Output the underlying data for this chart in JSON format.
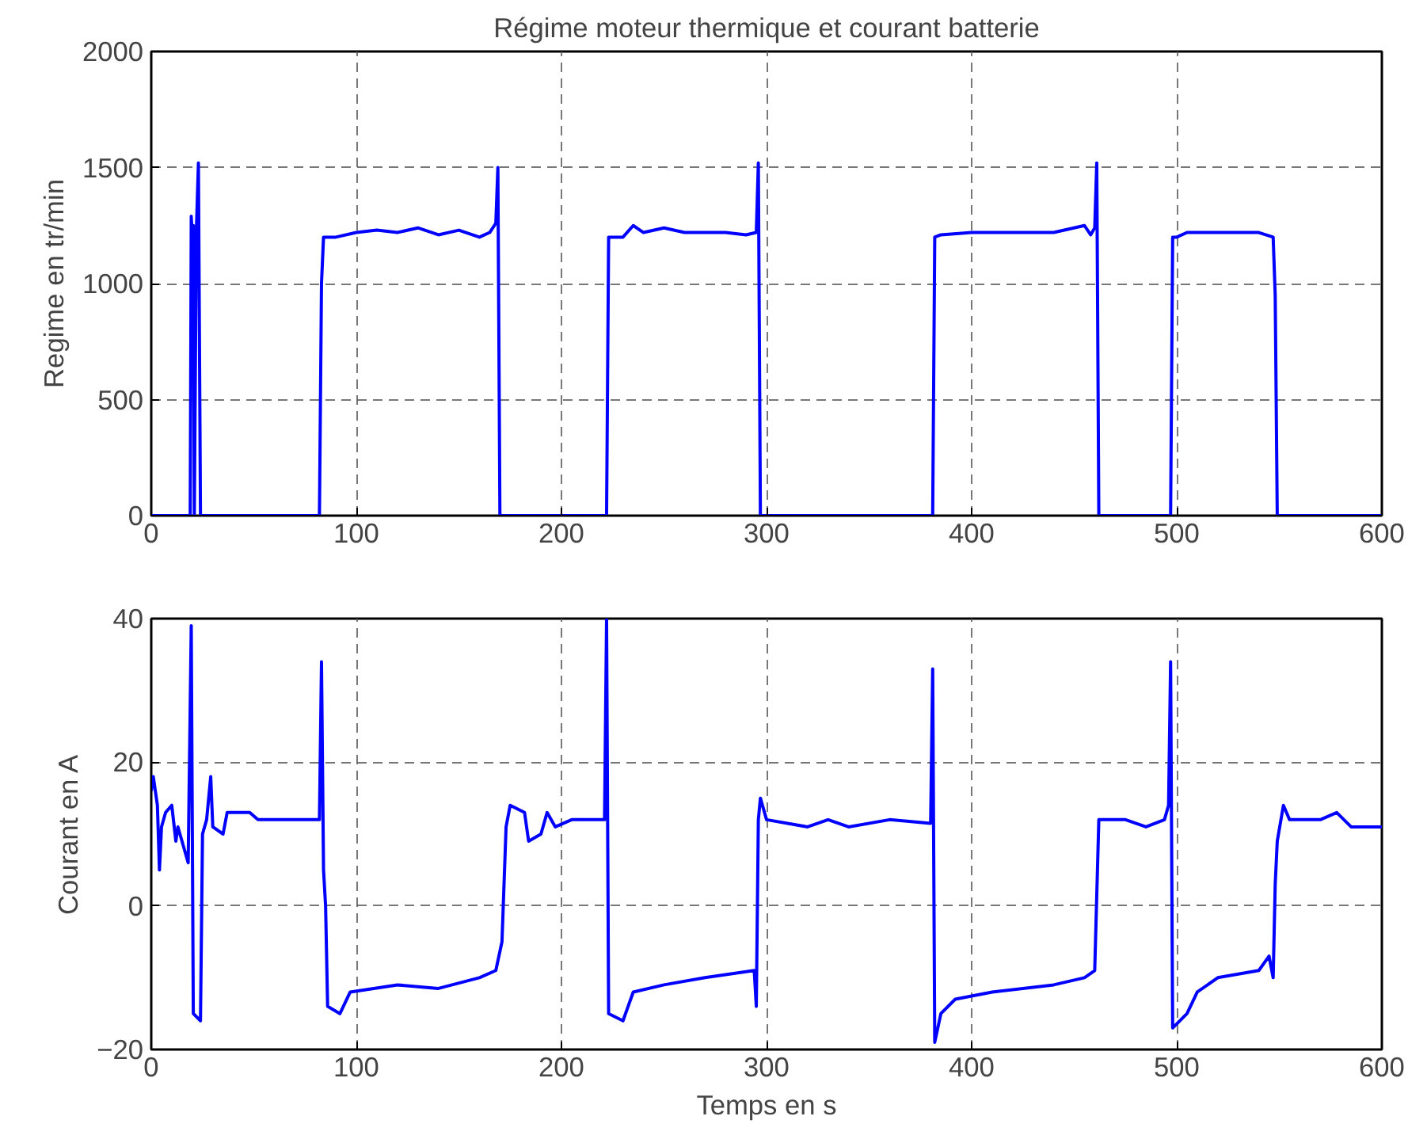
{
  "chart_data": [
    {
      "type": "line",
      "title": "Régime moteur thermique et courant batterie",
      "ylabel": "Regime en tr/min",
      "xlim": [
        0,
        600
      ],
      "xticks": [
        0,
        100,
        200,
        300,
        400,
        500,
        600
      ],
      "ylim": [
        0,
        2000
      ],
      "yticks": [
        0,
        500,
        1000,
        1500,
        2000
      ],
      "grid": true,
      "marker": "none",
      "line_style": "solid",
      "series": [
        {
          "color": "#0000ff",
          "x": [
            0,
            19,
            19.5,
            20,
            20.5,
            21,
            22,
            23,
            24,
            25,
            82,
            83,
            84,
            90,
            100,
            110,
            120,
            130,
            140,
            150,
            160,
            165,
            168,
            169,
            170,
            222,
            223,
            230,
            235,
            240,
            250,
            260,
            270,
            280,
            290,
            295,
            296,
            297,
            381,
            382,
            385,
            400,
            420,
            440,
            455,
            458,
            460,
            461,
            462,
            497,
            498,
            500,
            505,
            520,
            540,
            547,
            548,
            549,
            600
          ],
          "values": [
            0,
            0,
            1290,
            1200,
            1250,
            0,
            1230,
            1520,
            0,
            0,
            0,
            1000,
            1200,
            1200,
            1220,
            1230,
            1220,
            1240,
            1210,
            1230,
            1200,
            1220,
            1260,
            1500,
            0,
            0,
            1200,
            1200,
            1250,
            1220,
            1240,
            1220,
            1220,
            1220,
            1210,
            1220,
            1520,
            0,
            0,
            1200,
            1210,
            1220,
            1220,
            1220,
            1250,
            1210,
            1240,
            1520,
            0,
            0,
            1200,
            1200,
            1220,
            1220,
            1220,
            1200,
            950,
            0,
            0
          ]
        }
      ]
    },
    {
      "type": "line",
      "xlabel": "Temps en s",
      "ylabel": "Courant en A",
      "xlim": [
        0,
        600
      ],
      "xticks": [
        0,
        100,
        200,
        300,
        400,
        500,
        600
      ],
      "ylim": [
        -20,
        40
      ],
      "yticks": [
        -20,
        0,
        20,
        40
      ],
      "grid": true,
      "marker": "none",
      "line_style": "solid",
      "series": [
        {
          "color": "#0000ff",
          "x": [
            0,
            1,
            3,
            4,
            5,
            7,
            10,
            12,
            13,
            18,
            19.5,
            20.5,
            24,
            25,
            27,
            29,
            30,
            35,
            37,
            48,
            52,
            82,
            83,
            84,
            85,
            86,
            92,
            97,
            120,
            140,
            160,
            168,
            171,
            173,
            175,
            182,
            184,
            190,
            193,
            197,
            205,
            221,
            222,
            223,
            230,
            235,
            250,
            270,
            294,
            295,
            296,
            297,
            300,
            320,
            330,
            340,
            360,
            380,
            381,
            382,
            385,
            392,
            410,
            440,
            455,
            460,
            462,
            475,
            485,
            494,
            496,
            497,
            498,
            505,
            510,
            520,
            540,
            545,
            547,
            548,
            549,
            552,
            555,
            570,
            578,
            585,
            600
          ],
          "values": [
            16,
            18,
            14,
            5,
            11,
            13,
            14,
            9,
            11,
            6,
            39,
            -15,
            -16,
            10,
            12,
            18,
            11,
            10,
            13,
            13,
            12,
            12,
            34,
            5,
            0,
            -14,
            -15,
            -12,
            -11,
            -11.5,
            -10,
            -9,
            -5,
            11,
            14,
            13,
            9,
            10,
            13,
            11,
            12,
            12,
            40,
            -15,
            -16,
            -12,
            -11,
            -10,
            -9,
            -14,
            12,
            15,
            12,
            11,
            12,
            11,
            12,
            11.5,
            33,
            -19,
            -15,
            -13,
            -12,
            -11,
            -10,
            -9,
            12,
            12,
            11,
            12,
            14,
            34,
            -17,
            -15,
            -12,
            -10,
            -9,
            -7,
            -10,
            3,
            9,
            14,
            12,
            12,
            13,
            11,
            11
          ]
        }
      ]
    }
  ]
}
